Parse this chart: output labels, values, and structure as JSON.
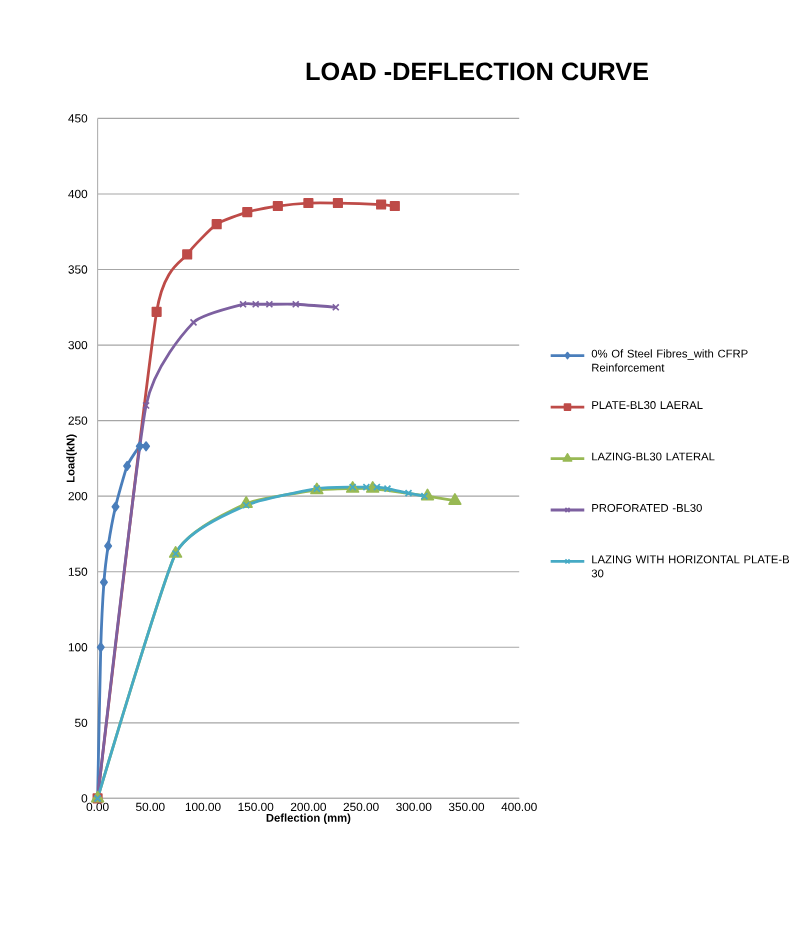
{
  "chart_data": {
    "type": "line",
    "title": "LOAD -DEFLECTION CURVE",
    "xlabel": "Deflection (mm)",
    "ylabel": "Load(kN)",
    "xlim": [
      0,
      400
    ],
    "ylim": [
      0,
      450
    ],
    "xticks": [
      {
        "value": 0,
        "label": "0.00"
      },
      {
        "value": 50,
        "label": "50.00"
      },
      {
        "value": 100,
        "label": "100.00"
      },
      {
        "value": 150,
        "label": "150.00"
      },
      {
        "value": 200,
        "label": "200.00"
      },
      {
        "value": 250,
        "label": "250.00"
      },
      {
        "value": 300,
        "label": "300.00"
      },
      {
        "value": 350,
        "label": "350.00"
      },
      {
        "value": 400,
        "label": "400.00"
      }
    ],
    "yticks": [
      0,
      50,
      100,
      150,
      200,
      250,
      300,
      350,
      400,
      450
    ],
    "grid": "y",
    "legend": "right",
    "series": [
      {
        "name": "0% Of Steel Fibres_with CFRP Reinforcement",
        "color": "#4a7ebb",
        "marker": "diamond",
        "x": [
          0,
          3,
          6,
          10,
          17,
          28,
          40,
          46
        ],
        "values": [
          0,
          100,
          143,
          167,
          193,
          220,
          233,
          233
        ]
      },
      {
        "name": "PLATE-BL30 LAERAL",
        "color": "#be4b48",
        "marker": "square",
        "x": [
          0,
          56,
          85,
          113,
          142,
          171,
          200,
          228,
          269,
          282
        ],
        "values": [
          0,
          322,
          360,
          380,
          388,
          392,
          394,
          394,
          393,
          392
        ]
      },
      {
        "name": "LAZING-BL30 LATERAL",
        "color": "#98b954",
        "marker": "triangle",
        "x": [
          0,
          74,
          141,
          208,
          242,
          261,
          313,
          339
        ],
        "values": [
          0,
          162,
          195,
          204,
          205,
          205,
          200,
          197
        ]
      },
      {
        "name": "PROFORATED -BL30",
        "color": "#7d60a0",
        "marker": "cross",
        "x": [
          0,
          46,
          91,
          138,
          150,
          163,
          188,
          226
        ],
        "values": [
          0,
          260,
          315,
          327,
          327,
          327,
          327,
          325
        ]
      },
      {
        "name": "LAZING WITH HORIZONTAL PLATE-B 30",
        "color": "#46aac5",
        "marker": "cross",
        "x": [
          0,
          74,
          141,
          208,
          242,
          255,
          265,
          275,
          295,
          310
        ],
        "values": [
          0,
          162,
          194,
          205,
          206,
          206,
          206,
          205,
          202,
          200
        ]
      }
    ]
  }
}
